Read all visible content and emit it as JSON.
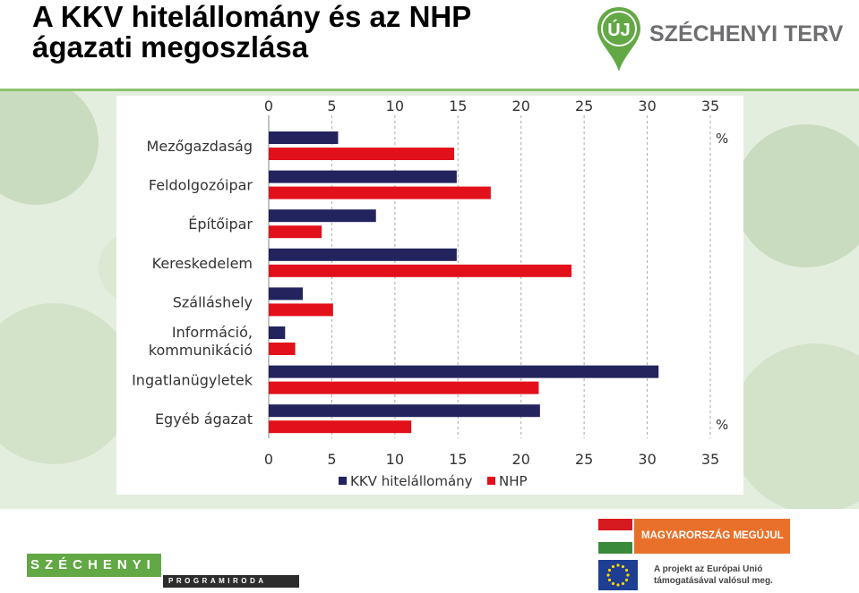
{
  "title": {
    "line1": "A KKV hitelállomány és az NHP",
    "line2": "ágazati megoszlása"
  },
  "logos": {
    "top_pin_text": "ÚJ",
    "top_text": "SZÉCHENYI TERV",
    "bottom_main": "SZÉCHENYI",
    "bottom_sub": "PROGRAMIRODA",
    "banner_text": "MAGYARORSZÁG MEGÚJUL",
    "eu_line1": "A projekt az Európai Unió",
    "eu_line2": "támogatásával valósul meg."
  },
  "colors": {
    "kkv": "#23235e",
    "nhp": "#e2101a",
    "green": "#62a845",
    "orange": "#e8702a"
  },
  "chart_data": {
    "type": "bar",
    "orientation": "horizontal",
    "categories": [
      "Mezőgazdaság",
      "Feldolgozóipar",
      "Építőipar",
      "Kereskedelem",
      "Szálláshely",
      "Információ, kommunikáció",
      "Ingatlanügyletek",
      "Egyéb ágazat"
    ],
    "category_lines": [
      [
        "Mezőgazdaság"
      ],
      [
        "Feldolgozóipar"
      ],
      [
        "Építőipar"
      ],
      [
        "Kereskedelem"
      ],
      [
        "Szálláshely"
      ],
      [
        "Információ,",
        "kommunikáció"
      ],
      [
        "Ingatlanügyletek"
      ],
      [
        "Egyéb ágazat"
      ]
    ],
    "series": [
      {
        "name": "KKV hitelállomány",
        "values": [
          5.5,
          14.9,
          8.5,
          14.9,
          2.7,
          1.3,
          30.9,
          21.5
        ]
      },
      {
        "name": "NHP",
        "values": [
          14.7,
          17.6,
          4.2,
          24.0,
          5.1,
          2.1,
          21.4,
          11.3
        ]
      }
    ],
    "xlim": [
      0,
      35
    ],
    "xticks": [
      0,
      5,
      10,
      15,
      20,
      25,
      30,
      35
    ],
    "unit_label": "%",
    "grid": "vertical dashed",
    "legend_position": "bottom"
  }
}
